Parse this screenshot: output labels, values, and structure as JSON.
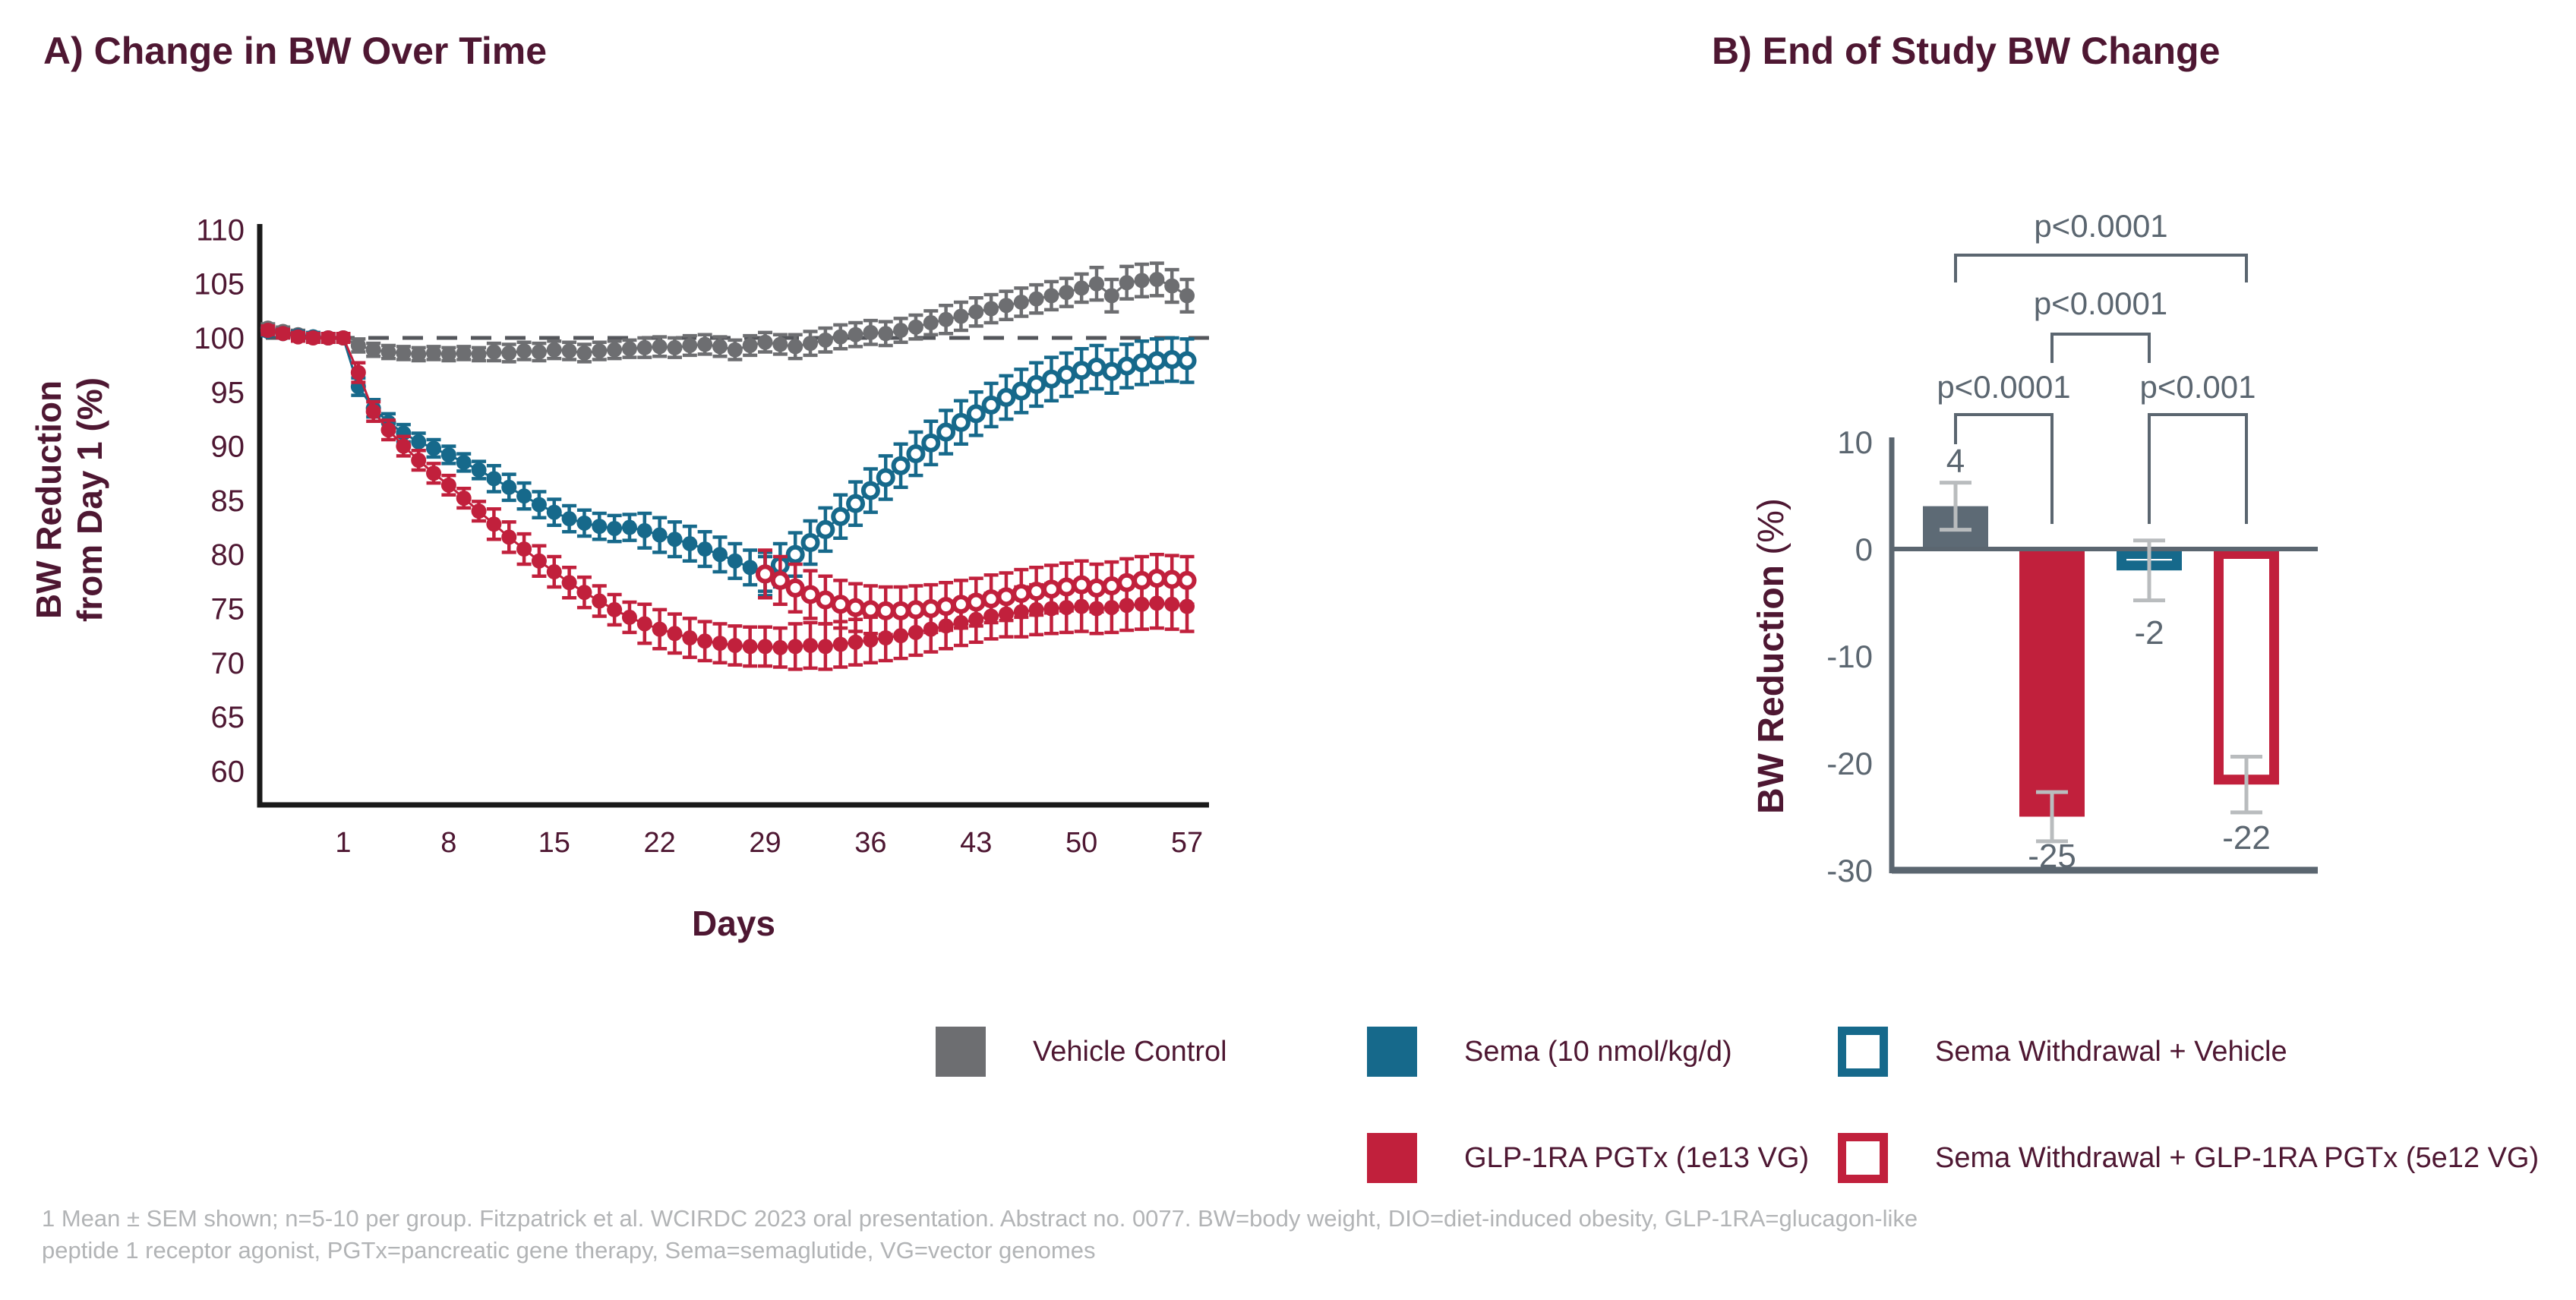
{
  "colors": {
    "maroon": "#4e1732",
    "axis_black": "#1a1a1a",
    "slate": "#5b6670",
    "gray_series": "#6d6e71",
    "gray_bar": "#5d6a75",
    "teal": "#16698b",
    "crimson": "#c1203c",
    "error_silver": "#b9bcbe",
    "dash_gray": "#54565b",
    "footnote_gray": "#b2b4b6"
  },
  "chart_data": [
    {
      "type": "line",
      "title": "A) Change in BW Over Time",
      "xlabel": "Days",
      "ylabel_line1": "BW Reduction",
      "ylabel_line2": "from Day 1 (%)",
      "xlim": [
        -5,
        58.5
      ],
      "ylim": [
        60,
        110
      ],
      "xticks": [
        1,
        8,
        15,
        22,
        29,
        36,
        43,
        50,
        57
      ],
      "yticks": [
        110,
        105,
        100,
        95,
        90,
        85,
        80,
        75,
        70,
        65,
        60
      ],
      "grid": false,
      "reference_line": {
        "y": 100,
        "style": "dashed"
      },
      "series": [
        {
          "name": "Vehicle Control",
          "marker": "solid",
          "color": "#6d6e71",
          "day_start": -4,
          "values": [
            100.9,
            100.6,
            100.3,
            100.1,
            100.0,
            100.0,
            99.3,
            98.9,
            98.7,
            98.6,
            98.5,
            98.6,
            98.5,
            98.6,
            98.5,
            98.7,
            98.6,
            98.8,
            98.7,
            98.9,
            98.8,
            98.6,
            98.8,
            98.9,
            99.0,
            99.1,
            99.2,
            99.1,
            99.3,
            99.4,
            99.2,
            98.9,
            99.3,
            99.6,
            99.4,
            99.2,
            99.5,
            99.8,
            100.1,
            100.3,
            100.5,
            100.4,
            100.7,
            101.0,
            101.4,
            101.7,
            102.0,
            102.4,
            102.7,
            103.0,
            103.3,
            103.6,
            103.9,
            104.2,
            104.6,
            105.0,
            103.9,
            105.1,
            105.3,
            105.4,
            104.8,
            103.9
          ],
          "sem": [
            0.4,
            0.4,
            0.4,
            0.4,
            0.4,
            0.4,
            0.6,
            0.6,
            0.6,
            0.6,
            0.6,
            0.6,
            0.6,
            0.6,
            0.6,
            0.8,
            0.8,
            0.8,
            0.8,
            0.8,
            0.8,
            0.8,
            0.8,
            0.8,
            0.8,
            0.9,
            0.9,
            0.9,
            0.9,
            0.9,
            0.9,
            0.9,
            0.9,
            0.9,
            0.9,
            1.1,
            1.1,
            1.1,
            1.1,
            1.1,
            1.1,
            1.1,
            1.1,
            1.1,
            1.1,
            1.3,
            1.3,
            1.3,
            1.3,
            1.3,
            1.3,
            1.3,
            1.3,
            1.3,
            1.3,
            1.5,
            1.5,
            1.5,
            1.5,
            1.5,
            1.5,
            1.5
          ]
        },
        {
          "name": "Sema (10 nmol/kg/d)",
          "marker": "solid",
          "color": "#16698b",
          "day_start": -4,
          "values": [
            100.6,
            100.4,
            100.2,
            100.1,
            100.0,
            100.0,
            95.5,
            93.5,
            92.2,
            91.2,
            90.4,
            89.8,
            89.2,
            88.5,
            87.8,
            87.0,
            86.2,
            85.4,
            84.6,
            83.9,
            83.3,
            82.9,
            82.6,
            82.4,
            82.5,
            82.2,
            81.8,
            81.4,
            81.0,
            80.5,
            80.0,
            79.4,
            78.8,
            78.2
          ],
          "sem": [
            0.4,
            0.4,
            0.4,
            0.4,
            0.4,
            0.4,
            0.8,
            0.8,
            0.8,
            0.8,
            0.8,
            0.8,
            0.8,
            0.8,
            0.8,
            1.2,
            1.2,
            1.2,
            1.2,
            1.2,
            1.2,
            1.2,
            1.2,
            1.2,
            1.2,
            1.6,
            1.6,
            1.6,
            1.6,
            1.6,
            1.6,
            1.6,
            1.6,
            1.6
          ]
        },
        {
          "name": "GLP-1RA PGTx (1e13 VG)",
          "marker": "solid",
          "color": "#c1203c",
          "day_start": -4,
          "values": [
            100.7,
            100.4,
            100.1,
            100.0,
            100.0,
            100.0,
            96.8,
            93.2,
            91.5,
            90.0,
            88.7,
            87.5,
            86.4,
            85.2,
            84.0,
            82.8,
            81.6,
            80.5,
            79.4,
            78.4,
            77.4,
            76.5,
            75.7,
            74.9,
            74.2,
            73.6,
            73.1,
            72.7,
            72.3,
            72.0,
            71.8,
            71.6,
            71.5,
            71.5,
            71.4,
            71.5,
            71.6,
            71.5,
            71.7,
            71.9,
            72.1,
            72.3,
            72.5,
            72.8,
            73.1,
            73.4,
            73.7,
            74.0,
            74.3,
            74.5,
            74.7,
            74.9,
            75.0,
            75.1,
            75.2,
            75.0,
            75.1,
            75.3,
            75.4,
            75.5,
            75.4,
            75.2
          ],
          "sem": [
            0.4,
            0.4,
            0.4,
            0.4,
            0.4,
            0.4,
            0.9,
            0.9,
            0.9,
            0.9,
            0.9,
            0.9,
            0.9,
            0.9,
            0.9,
            1.4,
            1.4,
            1.4,
            1.4,
            1.4,
            1.4,
            1.4,
            1.4,
            1.4,
            1.4,
            1.8,
            1.8,
            1.8,
            1.8,
            1.8,
            1.8,
            1.8,
            1.8,
            1.8,
            1.8,
            2.1,
            2.1,
            2.1,
            2.1,
            2.1,
            2.1,
            2.1,
            2.1,
            2.1,
            2.1,
            2.1,
            2.1,
            2.1,
            2.1,
            2.1,
            2.3,
            2.3,
            2.3,
            2.3,
            2.3,
            2.3,
            2.3,
            2.3,
            2.3,
            2.3,
            2.3,
            2.3
          ]
        },
        {
          "name": "Sema Withdrawal + Vehicle",
          "marker": "open",
          "color": "#16698b",
          "day_start": 29,
          "values": [
            78.2,
            79.0,
            80.0,
            81.1,
            82.3,
            83.5,
            84.7,
            85.9,
            87.1,
            88.2,
            89.3,
            90.3,
            91.3,
            92.2,
            93.0,
            93.8,
            94.5,
            95.1,
            95.7,
            96.2,
            96.6,
            97.0,
            97.3,
            96.9,
            97.4,
            97.7,
            97.9,
            98.0,
            97.9
          ],
          "sem": [
            2.0,
            2.0,
            2.0,
            2.0,
            2.0,
            2.0,
            2.0,
            2.0,
            2.0,
            2.0,
            2.0,
            2.0,
            2.0,
            2.0,
            2.0,
            2.0,
            2.0,
            2.0,
            2.0,
            2.0,
            2.0,
            2.0,
            2.0,
            2.0,
            2.0,
            2.0,
            2.0,
            2.0,
            2.0
          ]
        },
        {
          "name": "Sema Withdrawal + GLP-1RA PGTx (5e12 VG)",
          "marker": "open",
          "color": "#c1203c",
          "day_start": 29,
          "values": [
            78.2,
            77.6,
            76.9,
            76.3,
            75.8,
            75.4,
            75.1,
            74.9,
            74.8,
            74.8,
            74.9,
            75.0,
            75.2,
            75.4,
            75.6,
            75.9,
            76.1,
            76.4,
            76.6,
            76.8,
            77.0,
            77.2,
            76.9,
            77.1,
            77.4,
            77.6,
            77.8,
            77.7,
            77.6
          ],
          "sem": [
            2.2,
            2.2,
            2.2,
            2.2,
            2.2,
            2.2,
            2.2,
            2.2,
            2.2,
            2.2,
            2.2,
            2.2,
            2.2,
            2.2,
            2.2,
            2.2,
            2.2,
            2.2,
            2.2,
            2.2,
            2.2,
            2.2,
            2.2,
            2.2,
            2.2,
            2.2,
            2.2,
            2.2,
            2.2
          ]
        }
      ]
    },
    {
      "type": "bar",
      "title": "B) End of Study BW Change",
      "ylabel_bold": "BW Reduction ",
      "ylabel_normal": "(%)",
      "ylim": [
        -30,
        10
      ],
      "yticks": [
        10,
        0,
        -10,
        -20,
        -30
      ],
      "bars": [
        {
          "name": "Vehicle Control",
          "value": 4,
          "sem": 2.2,
          "label": "4",
          "fill": "solid",
          "color": "#5d6a75"
        },
        {
          "name": "GLP-1RA PGTx (1e13 VG)",
          "value": -25,
          "sem": 2.3,
          "label": "-25",
          "fill": "solid",
          "color": "#c1203c"
        },
        {
          "name": "Sema Withdrawal + Vehicle",
          "value": -2,
          "sem": 2.8,
          "label": "-2",
          "fill": "open",
          "color": "#16698b"
        },
        {
          "name": "Sema Withdrawal + GLP-1RA PGTx (5e12 VG)",
          "value": -22,
          "sem": 2.6,
          "label": "-22",
          "fill": "open",
          "color": "#c1203c"
        }
      ],
      "significance": [
        {
          "label": "p<0.0001",
          "from": 0,
          "to": 1,
          "level": "bottom"
        },
        {
          "label": "p<0.001",
          "from": 2,
          "to": 3,
          "level": "bottom"
        },
        {
          "label": "p<0.0001",
          "from": 1,
          "to": 2,
          "level": "middle"
        },
        {
          "label": "p<0.0001",
          "from": 0,
          "to": 3,
          "level": "top"
        }
      ]
    }
  ],
  "legend": {
    "items": [
      {
        "label": "Vehicle Control",
        "fill": "solid",
        "color": "#6d6e71"
      },
      {
        "label": "Sema (10 nmol/kg/d)",
        "fill": "solid",
        "color": "#16698b"
      },
      {
        "label": "Sema Withdrawal + Vehicle",
        "fill": "open",
        "color": "#16698b"
      },
      {
        "label": "GLP-1RA PGTx (1e13 VG)",
        "fill": "solid",
        "color": "#c1203c"
      },
      {
        "label": "Sema Withdrawal + GLP-1RA PGTx (5e12 VG)",
        "fill": "open",
        "color": "#c1203c"
      }
    ]
  },
  "footnote": {
    "line1": "1 Mean ± SEM shown; n=5-10 per group. Fitzpatrick et al. WCIRDC 2023 oral presentation. Abstract no. 0077. BW=body weight, DIO=diet-induced obesity, GLP-1RA=glucagon-like",
    "line2": "peptide 1 receptor agonist, PGTx=pancreatic gene therapy, Sema=semaglutide, VG=vector genomes"
  }
}
